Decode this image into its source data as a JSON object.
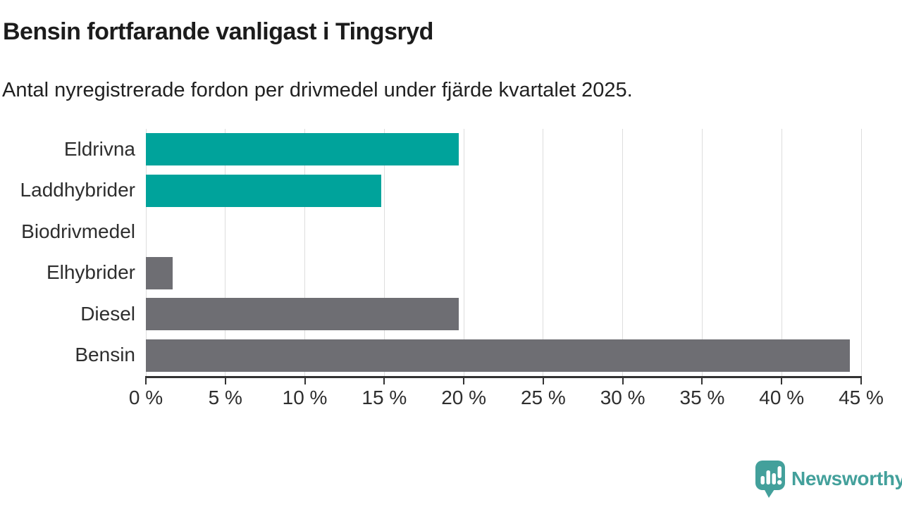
{
  "header": {
    "title": "Bensin fortfarande vanligast i Tingsryd",
    "subtitle": "Antal nyregistrerade fordon per drivmedel under fjärde kvartalet 2025."
  },
  "chart_data": {
    "type": "bar",
    "orientation": "horizontal",
    "title": "Bensin fortfarande vanligast i Tingsryd",
    "subtitle": "Antal nyregistrerade fordon per drivmedel under fjärde kvartalet 2025.",
    "categories": [
      "Eldrivna",
      "Laddhybrider",
      "Biodrivmedel",
      "Elhybrider",
      "Diesel",
      "Bensin"
    ],
    "values": [
      19.7,
      14.8,
      0,
      1.7,
      19.7,
      44.3
    ],
    "unit": "%",
    "bar_colors": [
      "#00a39b",
      "#00a39b",
      "#00a39b",
      "#6e6e73",
      "#6e6e73",
      "#6e6e73"
    ],
    "xlim": [
      0,
      45
    ],
    "xticks": [
      0,
      5,
      10,
      15,
      20,
      25,
      30,
      35,
      40,
      45
    ],
    "xtick_suffix": " %",
    "grid": true,
    "legend": false
  },
  "colors": {
    "bar_teal": "#00a39b",
    "bar_gray": "#6e6e73",
    "gridline": "#dddddd",
    "axis": "#333333",
    "logo_teal": "#43a09b"
  },
  "footer": {
    "logo_text": "Newsworthy"
  }
}
